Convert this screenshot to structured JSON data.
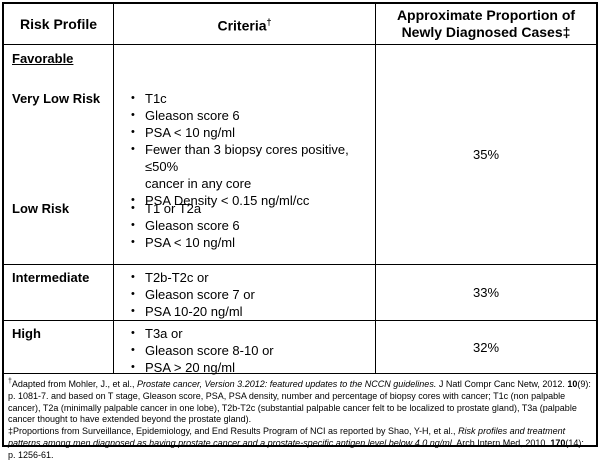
{
  "colors": {
    "border": "#000000",
    "background": "#ffffff",
    "text": "#000000"
  },
  "icons": {
    "bullet": "•"
  },
  "header": {
    "risk_profile": "Risk Profile",
    "criteria": "Criteria",
    "criteria_sup": "†",
    "proportion": "Approximate Proportion of Newly Diagnosed Cases‡"
  },
  "favorable": {
    "group_label": "Favorable",
    "very_low": {
      "label": "Very Low Risk",
      "bullets": [
        "T1c",
        "Gleason score 6",
        "PSA < 10 ng/ml",
        "Fewer than 3 biopsy cores positive, ≤50%\ncancer in any core",
        "PSA Density < 0.15 ng/ml/cc"
      ]
    },
    "low": {
      "label": "Low Risk",
      "bullets": [
        "T1 or T2a",
        "Gleason score 6",
        "PSA < 10 ng/ml"
      ]
    },
    "proportion": "35%"
  },
  "intermediate": {
    "label": "Intermediate",
    "bullets": [
      "T2b-T2c or",
      "Gleason score 7 or",
      "PSA 10-20 ng/ml"
    ],
    "proportion": "33%"
  },
  "high": {
    "label": "High",
    "bullets": [
      "T3a or",
      "Gleason score 8-10 or",
      "PSA > 20 ng/ml"
    ],
    "proportion": "32%"
  },
  "footnotes": [
    {
      "segments": [
        {
          "t": "†",
          "s": "super"
        },
        {
          "t": "Adapted from Mohler, J., et al., ",
          "s": "normal"
        },
        {
          "t": "Prostate cancer, Version 3.2012: featured updates to the NCCN guidelines.",
          "s": "italic"
        },
        {
          "t": " J Natl Compr Canc Netw, 2012. ",
          "s": "normal"
        },
        {
          "t": "10",
          "s": "bold"
        },
        {
          "t": "(9): p. 1081-7.  and based on T stage, Gleason score, PSA, PSA density, number and percentage of biopsy cores with cancer; T1c (non palpable cancer), T2a (minimally palpable cancer in one lobe), T2b-T2c (substantial palpable cancer felt to be localized to prostate gland), T3a (palpable cancer thought to have extended beyond the prostate gland).",
          "s": "normal"
        }
      ]
    },
    {
      "segments": [
        {
          "t": "‡Proportions from Surveillance, Epidemiology, and End Results Program of NCI as reported by Shao, Y-H, et al., ",
          "s": "normal"
        },
        {
          "t": "Risk profiles and treatment patterns among men diagnosed as having prostate cancer and a prostate-specific antigen level below 4.0 ng/ml.",
          "s": "italic"
        },
        {
          "t": " Arch Intern Med, 2010. ",
          "s": "normal"
        },
        {
          "t": "170",
          "s": "bold"
        },
        {
          "t": "(14): p. 1256-61.",
          "s": "normal"
        }
      ]
    }
  ]
}
